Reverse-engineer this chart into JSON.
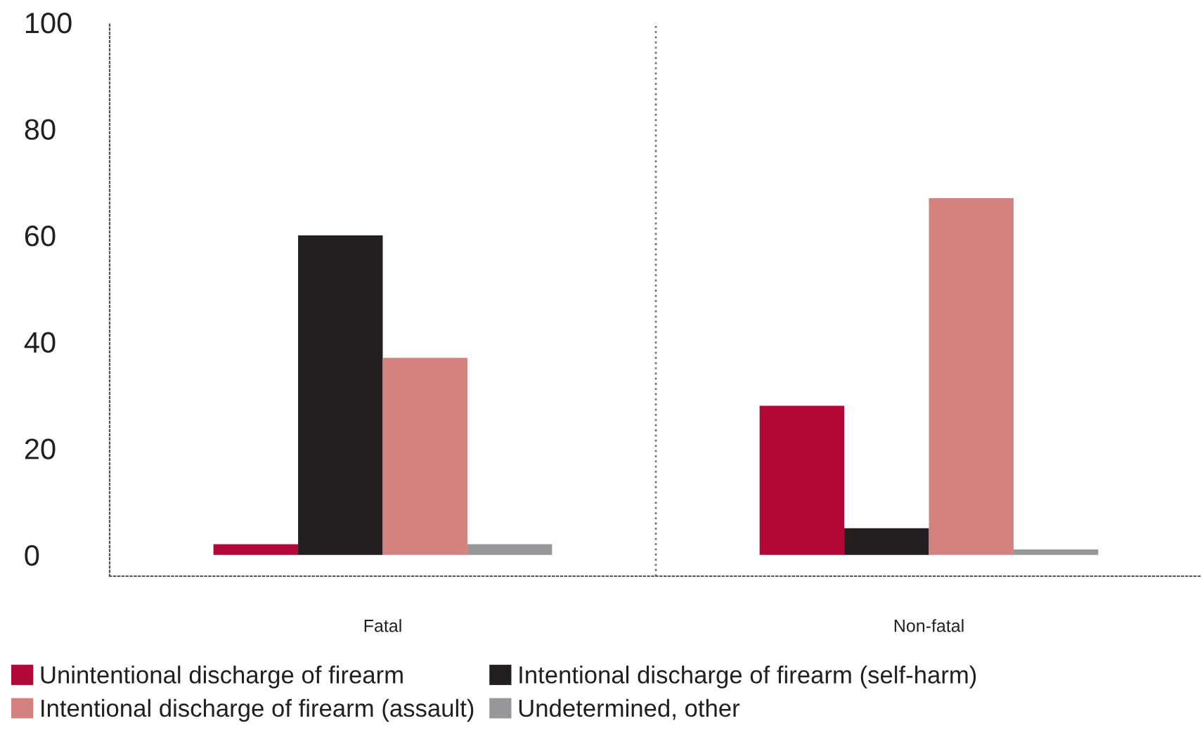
{
  "chart_data": {
    "type": "bar",
    "categories": [
      "Fatal",
      "Non-fatal"
    ],
    "series": [
      {
        "name": "Unintentional discharge of firearm",
        "color": "#b30838",
        "values": [
          2,
          28
        ]
      },
      {
        "name": "Intentional discharge of firearm (self-harm)",
        "color": "#231f20",
        "values": [
          60,
          5
        ]
      },
      {
        "name": "Intentional discharge of firearm (assault)",
        "color": "#d4827f",
        "values": [
          37,
          67
        ]
      },
      {
        "name": "Undetermined, other",
        "color": "#97979a",
        "values": [
          2,
          1
        ]
      }
    ],
    "ylim": [
      -4,
      100
    ],
    "yticks": [
      0,
      20,
      40,
      60,
      80,
      100
    ],
    "grid": false,
    "legend": "bottom"
  }
}
